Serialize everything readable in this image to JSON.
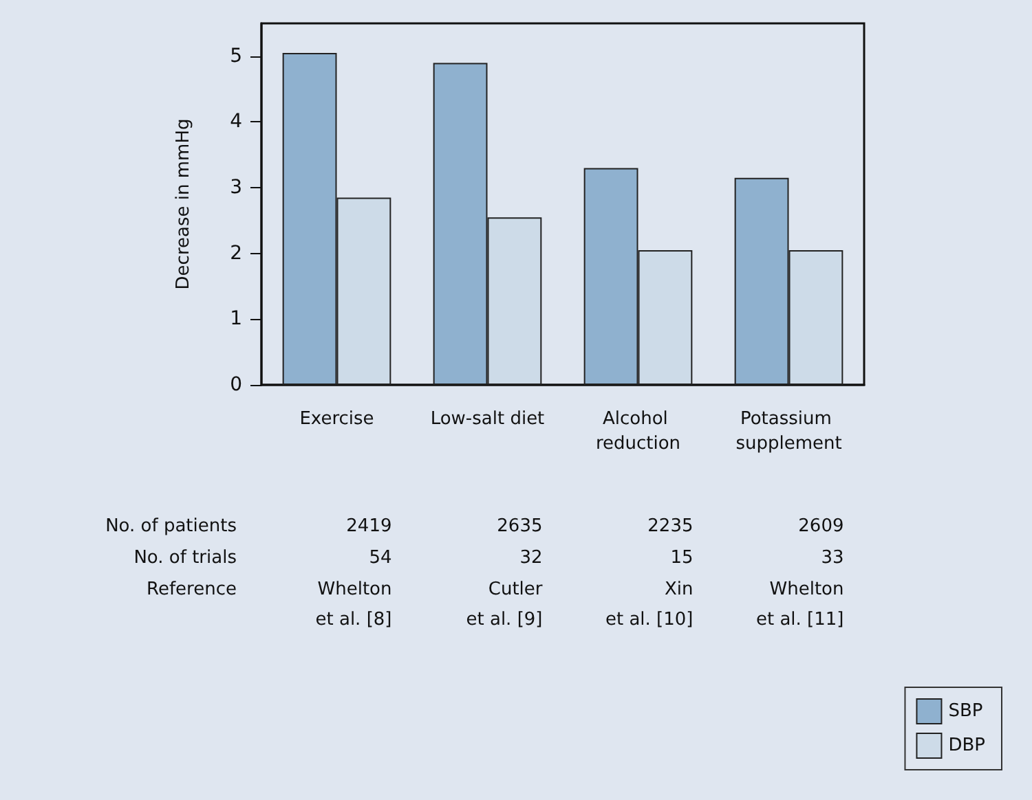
{
  "chart_data": {
    "type": "bar",
    "ylabel": "Decrease in mmHg",
    "categories": [
      "Exercise",
      "Low-salt diet",
      "Alcohol reduction",
      "Potassium supplement"
    ],
    "series": [
      {
        "name": "SBP",
        "color": "#8fb1cf",
        "values": [
          5.05,
          4.9,
          3.3,
          3.15
        ]
      },
      {
        "name": "DBP",
        "color": "#cddbe8",
        "values": [
          2.85,
          2.55,
          2.05,
          2.05
        ]
      }
    ],
    "ylim": [
      0,
      5.5
    ],
    "yticks": [
      0,
      1,
      2,
      3,
      4,
      5
    ],
    "grid": false,
    "legend": "bottom right",
    "annotations": [
      "No. of patients",
      "No. of trials",
      "Reference",
      "2419",
      "54",
      "Whelton\net al. [8]",
      "2635",
      "32",
      "Cutler\net al. [9]",
      "2235",
      "15",
      "Xin\net al. [10]",
      "2609",
      "33",
      "Whelton\net al. [11]"
    ]
  }
}
